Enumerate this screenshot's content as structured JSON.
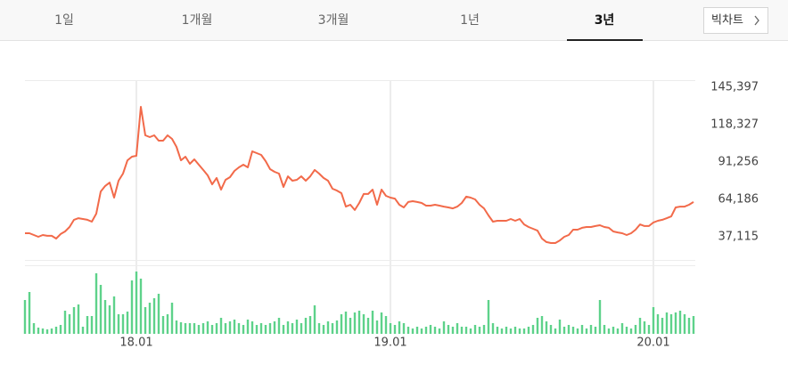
{
  "tabs": [
    "1일",
    "1개월",
    "3개월",
    "1년",
    "3년"
  ],
  "big_chart_button": "빅차트",
  "chart_data": [
    {
      "type": "line",
      "color": "#f26a4a",
      "values": [
        39700,
        39700,
        38400,
        37100,
        38400,
        37800,
        37800,
        35800,
        39100,
        41000,
        44200,
        49400,
        50600,
        50000,
        49400,
        48100,
        53900,
        69900,
        73900,
        76400,
        65500,
        77700,
        82900,
        92500,
        95100,
        95800,
        131200,
        110600,
        109300,
        110600,
        106700,
        106700,
        110600,
        108000,
        102200,
        92500,
        95100,
        90000,
        93200,
        89300,
        85500,
        81600,
        75100,
        79700,
        71300,
        78400,
        80300,
        84800,
        87400,
        89300,
        87400,
        99000,
        97700,
        96400,
        91900,
        86100,
        84200,
        82900,
        73200,
        80900,
        77700,
        78400,
        80900,
        77700,
        80900,
        85500,
        82900,
        79700,
        77700,
        71900,
        70600,
        68700,
        59000,
        60300,
        56500,
        61600,
        68100,
        68100,
        71300,
        60300,
        71300,
        66800,
        65500,
        64800,
        60300,
        58400,
        62300,
        62900,
        62300,
        61600,
        59700,
        59700,
        60300,
        59700,
        59000,
        58400,
        57700,
        59000,
        61600,
        66200,
        65500,
        64200,
        60300,
        57700,
        52600,
        48100,
        48700,
        48700,
        48700,
        50000,
        48700,
        50000,
        46100,
        44200,
        42900,
        41600,
        35800,
        33300,
        32600,
        32600,
        34500,
        37100,
        38400,
        42300,
        42300,
        43600,
        44200,
        44200,
        44900,
        45500,
        44200,
        43600,
        41000,
        40300,
        39700,
        38400,
        39700,
        42300,
        46100,
        44900,
        44900,
        47500,
        48700,
        49400,
        50600,
        51900,
        58400,
        59000,
        59000,
        60300,
        62300
      ],
      "ylim": [
        20364,
        150553
      ],
      "yticks": [
        {
          "value": 145397,
          "label": "145,397"
        },
        {
          "value": 118327,
          "label": "118,327"
        },
        {
          "value": 91256,
          "label": "91,256"
        },
        {
          "value": 64186,
          "label": "64,186"
        },
        {
          "value": 37115,
          "label": "37,115"
        }
      ]
    },
    {
      "type": "bar",
      "color": "#5ed28a",
      "categories": [
        null,
        null,
        null,
        null,
        null,
        null,
        null,
        null,
        null,
        null,
        null,
        null,
        null,
        null,
        null,
        null,
        null,
        null,
        null,
        null,
        null,
        null,
        null,
        null,
        null,
        "18.01",
        null,
        null,
        null,
        null,
        null,
        null,
        null,
        null,
        null,
        null,
        null,
        null,
        null,
        null,
        null,
        null,
        null,
        null,
        null,
        null,
        null,
        null,
        null,
        null,
        null,
        null,
        null,
        null,
        null,
        null,
        null,
        null,
        null,
        null,
        null,
        null,
        null,
        null,
        null,
        null,
        null,
        null,
        null,
        null,
        null,
        null,
        null,
        null,
        null,
        null,
        null,
        null,
        null,
        null,
        null,
        null,
        "19.01",
        null,
        null,
        null,
        null,
        null,
        null,
        null,
        null,
        null,
        null,
        null,
        null,
        null,
        null,
        null,
        null,
        null,
        null,
        null,
        null,
        null,
        null,
        null,
        null,
        null,
        null,
        null,
        null,
        null,
        null,
        null,
        null,
        null,
        null,
        null,
        null,
        null,
        null,
        null,
        null,
        null,
        null,
        null,
        null,
        null,
        null,
        null,
        null,
        null,
        null,
        null,
        null,
        null,
        null,
        null,
        null,
        null,
        null,
        "20.01",
        null,
        null,
        null,
        null,
        null,
        null,
        null,
        null,
        null
      ],
      "values": [
        38,
        47,
        12,
        7,
        6,
        5,
        6,
        8,
        10,
        26,
        22,
        30,
        33,
        8,
        20,
        20,
        68,
        55,
        38,
        32,
        42,
        22,
        22,
        25,
        60,
        70,
        62,
        30,
        35,
        40,
        45,
        20,
        22,
        35,
        15,
        13,
        12,
        12,
        12,
        10,
        12,
        14,
        10,
        12,
        18,
        12,
        14,
        16,
        12,
        10,
        16,
        14,
        10,
        12,
        10,
        12,
        14,
        18,
        10,
        14,
        12,
        16,
        12,
        18,
        20,
        32,
        12,
        10,
        14,
        12,
        15,
        22,
        25,
        18,
        24,
        26,
        22,
        18,
        26,
        15,
        24,
        20,
        12,
        10,
        14,
        12,
        8,
        6,
        8,
        6,
        8,
        10,
        8,
        6,
        14,
        10,
        8,
        12,
        8,
        8,
        6,
        10,
        8,
        10,
        38,
        12,
        8,
        6,
        8,
        6,
        8,
        6,
        6,
        8,
        10,
        18,
        20,
        14,
        10,
        6,
        16,
        8,
        10,
        8,
        6,
        10,
        6,
        10,
        8,
        38,
        10,
        6,
        8,
        6,
        12,
        8,
        6,
        10,
        18,
        14,
        10,
        30,
        22,
        18,
        24,
        22,
        24,
        26,
        22,
        18,
        20
      ],
      "ylim": [
        0,
        75
      ]
    }
  ]
}
